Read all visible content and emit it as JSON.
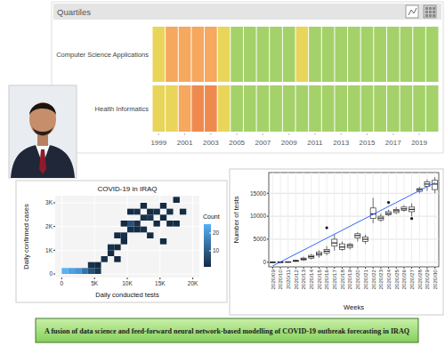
{
  "chart_data": [
    {
      "type": "heatmap",
      "title": "Quartiles",
      "categories": [
        "Computer Science Applications",
        "Health Informatics"
      ],
      "x": [
        1999,
        2000,
        2001,
        2002,
        2003,
        2004,
        2005,
        2006,
        2007,
        2008,
        2009,
        2010,
        2011,
        2012,
        2013,
        2014,
        2015,
        2016,
        2017,
        2018,
        2019,
        2020
      ],
      "xlim": [
        1998.5,
        2020.5
      ],
      "xticks": [
        1999,
        2001,
        2003,
        2005,
        2007,
        2009,
        2011,
        2013,
        2015,
        2017,
        2019
      ],
      "cells": [
        [
          2,
          3,
          3,
          3,
          3,
          2,
          1,
          1,
          1,
          1,
          1,
          2,
          1,
          1,
          1,
          1,
          1,
          1,
          1,
          1,
          1,
          1
        ],
        [
          2,
          2,
          3,
          4,
          4,
          2,
          1,
          1,
          1,
          1,
          1,
          1,
          1,
          1,
          1,
          1,
          1,
          1,
          1,
          1,
          1,
          1
        ]
      ]
    },
    {
      "type": "bin2d",
      "title": "COVID-19 in IRAQ",
      "x_label": "Daily conducted tests",
      "y_label": "Daily confirmed cases",
      "xlim": [
        -1000,
        21000
      ],
      "ylim": [
        -150,
        3300
      ],
      "xticks": [
        0,
        {
          "value": 5000,
          "label": "5K"
        },
        {
          "value": 10000,
          "label": "10K"
        },
        {
          "value": 15000,
          "label": "15K"
        },
        {
          "value": 20000,
          "label": "20K"
        }
      ],
      "yticks": [
        0,
        {
          "value": 1000,
          "label": "1K"
        },
        {
          "value": 2000,
          "label": "2K"
        },
        {
          "value": 3000,
          "label": "3K"
        }
      ],
      "grid": true,
      "bin_size": [
        1000,
        250
      ],
      "cells": [
        [
          0,
          0,
          25
        ],
        [
          1000,
          0,
          22
        ],
        [
          2000,
          0,
          20
        ],
        [
          3000,
          0,
          14
        ],
        [
          4000,
          0,
          8
        ],
        [
          5000,
          0,
          3
        ],
        [
          4000,
          250,
          2
        ],
        [
          5000,
          250,
          1
        ],
        [
          6000,
          500,
          2
        ],
        [
          8000,
          500,
          1
        ],
        [
          7000,
          750,
          1
        ],
        [
          8000,
          1000,
          1
        ],
        [
          7000,
          1000,
          2
        ],
        [
          9000,
          1250,
          1
        ],
        [
          15000,
          1250,
          1
        ],
        [
          8000,
          1500,
          1
        ],
        [
          9000,
          1500,
          2
        ],
        [
          13000,
          1500,
          1
        ],
        [
          10000,
          1750,
          2
        ],
        [
          11000,
          1750,
          1
        ],
        [
          12000,
          1750,
          2
        ],
        [
          9000,
          2000,
          1
        ],
        [
          10000,
          2000,
          8
        ],
        [
          11000,
          2000,
          2
        ],
        [
          14000,
          2000,
          1
        ],
        [
          16000,
          2000,
          1
        ],
        [
          17000,
          2000,
          1
        ],
        [
          12000,
          2250,
          2
        ],
        [
          13000,
          2250,
          3
        ],
        [
          15000,
          2250,
          1
        ],
        [
          10000,
          2500,
          1
        ],
        [
          11000,
          2500,
          2
        ],
        [
          13000,
          2500,
          1
        ],
        [
          14000,
          2500,
          2
        ],
        [
          16000,
          2500,
          2
        ],
        [
          18000,
          2500,
          1
        ],
        [
          12000,
          2750,
          1
        ],
        [
          15000,
          2750,
          1
        ],
        [
          17000,
          3000,
          1
        ]
      ],
      "count_label": "Count",
      "count_range": [
        1,
        25
      ],
      "count_ticks": [
        10,
        20
      ]
    },
    {
      "type": "box",
      "x_label": "Weeks",
      "y_label": "Number of tests",
      "categories": [
        "2020/09",
        "2020/10",
        "2020/11",
        "2020/12",
        "2020/13",
        "2020/14",
        "2020/15",
        "2020/16",
        "2020/17",
        "2020/18",
        "2020/19",
        "2020/20",
        "2020/21",
        "2020/22",
        "2020/23",
        "2020/24",
        "2020/25",
        "2020/26",
        "2020/27",
        "2020/28",
        "2020/29",
        "2020/30"
      ],
      "boxes": [
        [
          0,
          0,
          10,
          20,
          40
        ],
        [
          0,
          10,
          20,
          40,
          60
        ],
        [
          20,
          40,
          60,
          100,
          150
        ],
        [
          100,
          200,
          300,
          400,
          500
        ],
        [
          300,
          500,
          700,
          900,
          1200
        ],
        [
          600,
          900,
          1200,
          1500,
          1800
        ],
        [
          1000,
          1500,
          1800,
          2200,
          2600
        ],
        [
          1500,
          2000,
          2400,
          2800,
          3500
        ],
        [
          2500,
          3500,
          4200,
          5000,
          6000
        ],
        [
          2500,
          2800,
          3300,
          4000,
          4500
        ],
        [
          2800,
          3200,
          3600,
          3900,
          4200
        ],
        [
          4500,
          5300,
          5800,
          6200,
          6500
        ],
        [
          4000,
          4500,
          5000,
          5500,
          6000
        ],
        [
          8500,
          9500,
          10500,
          11800,
          14000
        ],
        [
          8800,
          9200,
          9600,
          10000,
          10600
        ],
        [
          10000,
          10300,
          10600,
          11000,
          11400
        ],
        [
          10500,
          10800,
          11200,
          11500,
          12000
        ],
        [
          11000,
          11300,
          11600,
          12000,
          12400
        ],
        [
          10000,
          11000,
          11500,
          12000,
          12800
        ],
        [
          15000,
          15400,
          15800,
          16000,
          16400
        ],
        [
          15500,
          16500,
          17000,
          17500,
          18000
        ],
        [
          15000,
          15800,
          17000,
          17800,
          18500
        ]
      ],
      "outliers": [
        [],
        [],
        [],
        [],
        [],
        [],
        [],
        [
          7500
        ],
        [],
        [],
        [],
        [],
        [],
        [],
        [],
        [
          13000
        ],
        [],
        [],
        [
          9500
        ],
        [],
        [],
        []
      ],
      "trend": [
        -800,
        17300
      ],
      "ylim": [
        -1000,
        19500
      ],
      "yticks": [
        0,
        5000,
        10000,
        15000
      ],
      "grid": true
    }
  ],
  "caption": "A fusion of data science and feed-forward neural network-based modelling of COVID-19 outbreak forecasting in IRAQ"
}
